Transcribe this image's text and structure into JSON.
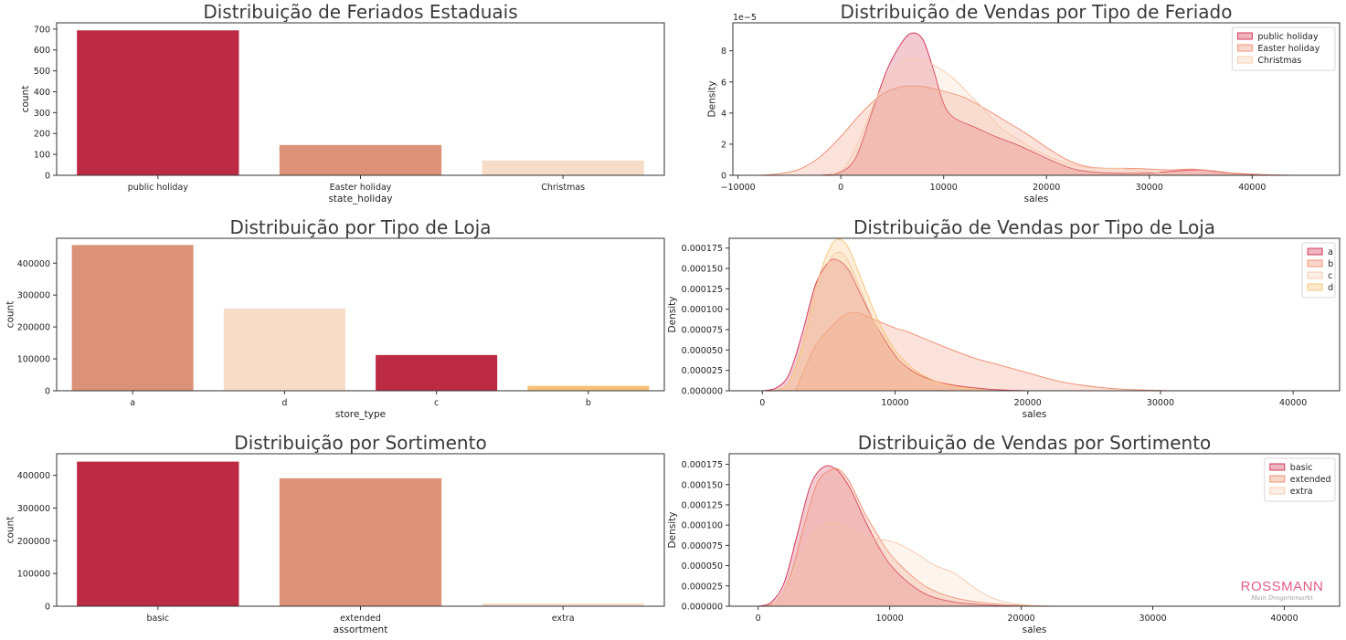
{
  "chart_data": [
    {
      "id": "c1",
      "type": "bar",
      "title": "Distribuição de Feriados Estaduais",
      "xlabel": "state_holiday",
      "ylabel": "count",
      "categories": [
        "public holiday",
        "Easter holiday",
        "Christmas"
      ],
      "values": [
        694,
        145,
        71
      ],
      "colors": [
        "#bd2a43",
        "#db9279",
        "#f7dcc7"
      ],
      "ylim": [
        0,
        730
      ],
      "yticks": [
        0,
        100,
        200,
        300,
        400,
        500,
        600,
        700
      ],
      "ytick_labels": [
        "0",
        "100",
        "200",
        "300",
        "400",
        "500",
        "600",
        "700"
      ]
    },
    {
      "id": "c2",
      "type": "area",
      "title": "Distribuição de Vendas por Tipo de Feriado",
      "xlabel": "sales",
      "ylabel": "Density",
      "offset_text": "1e−5",
      "xlim": [
        -10500,
        48500
      ],
      "ylim": [
        0,
        9.8
      ],
      "xticks": [
        -10000,
        0,
        10000,
        20000,
        30000,
        40000
      ],
      "xtick_labels": [
        "−10000",
        "0",
        "10000",
        "20000",
        "30000",
        "40000"
      ],
      "yticks": [
        0,
        2,
        4,
        6,
        8
      ],
      "ytick_labels": [
        "0",
        "2",
        "4",
        "6",
        "8"
      ],
      "legend": "top-right",
      "series": [
        {
          "name": "public holiday",
          "color": "#cf2a4a",
          "fill_opacity": 0.25,
          "points": [
            [
              -2000,
              0
            ],
            [
              0,
              0.2
            ],
            [
              1500,
              1.2
            ],
            [
              3000,
              4
            ],
            [
              4500,
              6.8
            ],
            [
              6000,
              8.6
            ],
            [
              7000,
              9.15
            ],
            [
              8000,
              8.7
            ],
            [
              9000,
              6.8
            ],
            [
              10000,
              4.6
            ],
            [
              11000,
              3.7
            ],
            [
              13000,
              3.1
            ],
            [
              15000,
              2.5
            ],
            [
              17000,
              2.0
            ],
            [
              19000,
              1.4
            ],
            [
              21000,
              0.8
            ],
            [
              23000,
              0.35
            ],
            [
              26000,
              0.15
            ],
            [
              30000,
              0.15
            ],
            [
              33000,
              0.3
            ],
            [
              35000,
              0.35
            ],
            [
              37000,
              0.2
            ],
            [
              40000,
              0.05
            ],
            [
              43000,
              0
            ]
          ]
        },
        {
          "name": "Easter holiday",
          "color": "#ee8a6c",
          "fill_opacity": 0.25,
          "points": [
            [
              -8000,
              0
            ],
            [
              -6000,
              0.1
            ],
            [
              -4000,
              0.4
            ],
            [
              -2000,
              1.2
            ],
            [
              0,
              2.5
            ],
            [
              2000,
              4.0
            ],
            [
              4000,
              5.2
            ],
            [
              6000,
              5.7
            ],
            [
              8000,
              5.7
            ],
            [
              10000,
              5.4
            ],
            [
              12000,
              5.0
            ],
            [
              14000,
              4.3
            ],
            [
              16000,
              3.5
            ],
            [
              18000,
              2.7
            ],
            [
              20000,
              1.8
            ],
            [
              22000,
              1.0
            ],
            [
              24000,
              0.55
            ],
            [
              26000,
              0.45
            ],
            [
              28000,
              0.45
            ],
            [
              30000,
              0.4
            ],
            [
              32000,
              0.35
            ],
            [
              34000,
              0.4
            ],
            [
              36000,
              0.3
            ],
            [
              38000,
              0.15
            ],
            [
              41000,
              0.05
            ],
            [
              44000,
              0
            ]
          ]
        },
        {
          "name": "Christmas",
          "color": "#f6c7a9",
          "fill_opacity": 0.2,
          "points": [
            [
              -1000,
              0
            ],
            [
              500,
              0.6
            ],
            [
              2000,
              2.6
            ],
            [
              3500,
              5.0
            ],
            [
              5000,
              6.7
            ],
            [
              6500,
              7.5
            ],
            [
              8000,
              7.4
            ],
            [
              9500,
              6.9
            ],
            [
              11000,
              6.2
            ],
            [
              12500,
              5.2
            ],
            [
              14000,
              4.2
            ],
            [
              15500,
              3.1
            ],
            [
              17000,
              2.4
            ],
            [
              19000,
              1.6
            ],
            [
              21000,
              1.0
            ],
            [
              23000,
              0.6
            ],
            [
              25000,
              0.45
            ],
            [
              27000,
              0.45
            ],
            [
              29000,
              0.3
            ],
            [
              32000,
              0.1
            ],
            [
              36000,
              0
            ]
          ]
        }
      ]
    },
    {
      "id": "c3",
      "type": "bar",
      "title": "Distribuição por Tipo de Loja",
      "xlabel": "store_type",
      "ylabel": "count",
      "categories": [
        "a",
        "d",
        "c",
        "b"
      ],
      "values": [
        457000,
        258000,
        112000,
        15500
      ],
      "colors": [
        "#db9279",
        "#f7dcc7",
        "#bd2a43",
        "#f7c277"
      ],
      "ylim": [
        0,
        478000
      ],
      "yticks": [
        0,
        100000,
        200000,
        300000,
        400000
      ],
      "ytick_labels": [
        "0",
        "100000",
        "200000",
        "300000",
        "400000"
      ]
    },
    {
      "id": "c4",
      "type": "area",
      "title": "Distribuição de Vendas por Tipo de Loja",
      "xlabel": "sales",
      "ylabel": "Density",
      "xlim": [
        -2500,
        43500
      ],
      "ylim": [
        0,
        0.000187
      ],
      "xticks": [
        0,
        10000,
        20000,
        30000,
        40000
      ],
      "xtick_labels": [
        "0",
        "10000",
        "20000",
        "30000",
        "40000"
      ],
      "yticks": [
        0,
        2.5e-05,
        5e-05,
        7.5e-05,
        0.0001,
        0.000125,
        0.00015,
        0.000175
      ],
      "ytick_labels": [
        "0.000000",
        "0.000025",
        "0.000050",
        "0.000075",
        "0.000100",
        "0.000125",
        "0.000150",
        "0.000175"
      ],
      "legend": "top-right",
      "series": [
        {
          "name": "a",
          "color": "#cf2a4a",
          "fill_opacity": 0.25,
          "points": [
            [
              0,
              0
            ],
            [
              1000,
              3e-06
            ],
            [
              2000,
              2e-05
            ],
            [
              3000,
              7e-05
            ],
            [
              4000,
              0.00013
            ],
            [
              5000,
              0.000158
            ],
            [
              5700,
              0.00016
            ],
            [
              6500,
              0.000148
            ],
            [
              7500,
              0.000115
            ],
            [
              8500,
              8.2e-05
            ],
            [
              9500,
              5.5e-05
            ],
            [
              10500,
              3.4e-05
            ],
            [
              12000,
              1.8e-05
            ],
            [
              14000,
              8e-06
            ],
            [
              17000,
              2e-06
            ],
            [
              20000,
              0
            ]
          ]
        },
        {
          "name": "b",
          "color": "#ee8a6c",
          "fill_opacity": 0.25,
          "points": [
            [
              2500,
              0
            ],
            [
              3000,
              2e-05
            ],
            [
              4000,
              5.5e-05
            ],
            [
              5000,
              7.5e-05
            ],
            [
              6000,
              9.1e-05
            ],
            [
              6800,
              9.6e-05
            ],
            [
              7500,
              9.4e-05
            ],
            [
              8500,
              8.7e-05
            ],
            [
              10000,
              7.7e-05
            ],
            [
              11000,
              7.2e-05
            ],
            [
              12500,
              6.2e-05
            ],
            [
              14000,
              5.2e-05
            ],
            [
              16000,
              4e-05
            ],
            [
              18000,
              3.1e-05
            ],
            [
              20000,
              2.2e-05
            ],
            [
              22000,
              1.3e-05
            ],
            [
              24000,
              7e-06
            ],
            [
              27000,
              2e-06
            ],
            [
              31000,
              0
            ]
          ]
        },
        {
          "name": "c",
          "color": "#f6c7a9",
          "fill_opacity": 0.2,
          "points": [
            [
              1000,
              0
            ],
            [
              2000,
              1e-05
            ],
            [
              3000,
              5e-05
            ],
            [
              4000,
              0.00011
            ],
            [
              5000,
              0.000158
            ],
            [
              5800,
              0.00017
            ],
            [
              6500,
              0.000158
            ],
            [
              7500,
              0.00012
            ],
            [
              8500,
              8.2e-05
            ],
            [
              9500,
              5.2e-05
            ],
            [
              10500,
              3.3e-05
            ],
            [
              12000,
              1.5e-05
            ],
            [
              14000,
              5e-06
            ],
            [
              17000,
              0
            ]
          ]
        },
        {
          "name": "d",
          "color": "#f7c277",
          "fill_opacity": 0.28,
          "points": [
            [
              1000,
              0
            ],
            [
              2000,
              1e-05
            ],
            [
              3000,
              5.5e-05
            ],
            [
              4000,
              0.000125
            ],
            [
              5000,
              0.000172
            ],
            [
              5700,
              0.000186
            ],
            [
              6500,
              0.000175
            ],
            [
              7500,
              0.000135
            ],
            [
              8500,
              9.5e-05
            ],
            [
              9500,
              6.2e-05
            ],
            [
              10500,
              4e-05
            ],
            [
              12000,
              2e-05
            ],
            [
              14000,
              7e-06
            ],
            [
              17000,
              0
            ]
          ]
        }
      ]
    },
    {
      "id": "c5",
      "type": "bar",
      "title": "Distribuição por Sortimento",
      "xlabel": "assortment",
      "ylabel": "count",
      "categories": [
        "basic",
        "extended",
        "extra"
      ],
      "values": [
        442000,
        391000,
        8500
      ],
      "colors": [
        "#bd2a43",
        "#db9279",
        "#f7dcc7"
      ],
      "ylim": [
        0,
        466000
      ],
      "yticks": [
        0,
        100000,
        200000,
        300000,
        400000
      ],
      "ytick_labels": [
        "0",
        "100000",
        "200000",
        "300000",
        "400000"
      ]
    },
    {
      "id": "c6",
      "type": "area",
      "title": "Distribuição de Vendas por Sortimento",
      "xlabel": "sales",
      "ylabel": "Density",
      "xlim": [
        -2200,
        44200
      ],
      "ylim": [
        0,
        0.000188
      ],
      "xticks": [
        0,
        10000,
        20000,
        30000,
        40000
      ],
      "xtick_labels": [
        "0",
        "10000",
        "20000",
        "30000",
        "40000"
      ],
      "yticks": [
        0,
        2.5e-05,
        5e-05,
        7.5e-05,
        0.0001,
        0.000125,
        0.00015,
        0.000175
      ],
      "ytick_labels": [
        "0.000000",
        "0.000025",
        "0.000050",
        "0.000075",
        "0.000100",
        "0.000125",
        "0.000150",
        "0.000175"
      ],
      "legend": "top-right",
      "series": [
        {
          "name": "basic",
          "color": "#cf2a4a",
          "fill_opacity": 0.25,
          "points": [
            [
              0,
              0
            ],
            [
              1000,
              5e-06
            ],
            [
              2000,
              3e-05
            ],
            [
              3000,
              9e-05
            ],
            [
              4000,
              0.00015
            ],
            [
              5000,
              0.000172
            ],
            [
              6000,
              0.000168
            ],
            [
              7000,
              0.000145
            ],
            [
              8000,
              0.00011
            ],
            [
              9000,
              7.8e-05
            ],
            [
              10000,
              5.2e-05
            ],
            [
              11500,
              2.8e-05
            ],
            [
              13000,
              1.3e-05
            ],
            [
              15000,
              5e-06
            ],
            [
              18000,
              1e-06
            ],
            [
              21000,
              0
            ]
          ]
        },
        {
          "name": "extended",
          "color": "#ee8a6c",
          "fill_opacity": 0.25,
          "points": [
            [
              500,
              0
            ],
            [
              1500,
              8e-06
            ],
            [
              2500,
              4e-05
            ],
            [
              3500,
              0.0001
            ],
            [
              4500,
              0.000152
            ],
            [
              5500,
              0.000168
            ],
            [
              6200,
              0.000168
            ],
            [
              7000,
              0.000152
            ],
            [
              8000,
              0.000118
            ],
            [
              9000,
              9e-05
            ],
            [
              10000,
              6.5e-05
            ],
            [
              11500,
              4e-05
            ],
            [
              13000,
              2.2e-05
            ],
            [
              15000,
              1e-05
            ],
            [
              18000,
              3e-06
            ],
            [
              22000,
              0
            ]
          ]
        },
        {
          "name": "extra",
          "color": "#f6c7a9",
          "fill_opacity": 0.2,
          "points": [
            [
              1000,
              0
            ],
            [
              2000,
              2e-05
            ],
            [
              3000,
              5.5e-05
            ],
            [
              4000,
              8.5e-05
            ],
            [
              5000,
              0.0001
            ],
            [
              5800,
              0.000103
            ],
            [
              7000,
              9.5e-05
            ],
            [
              8500,
              8.5e-05
            ],
            [
              9500,
              8.2e-05
            ],
            [
              10500,
              7.8e-05
            ],
            [
              11500,
              7e-05
            ],
            [
              12500,
              6e-05
            ],
            [
              13500,
              5e-05
            ],
            [
              15000,
              4e-05
            ],
            [
              16500,
              2.2e-05
            ],
            [
              18000,
              9e-06
            ],
            [
              20000,
              2e-06
            ],
            [
              23000,
              0
            ]
          ]
        }
      ]
    }
  ],
  "brand": {
    "logo_text": "ROSSMANN",
    "tagline": "Mein Drogeriemarkt"
  }
}
